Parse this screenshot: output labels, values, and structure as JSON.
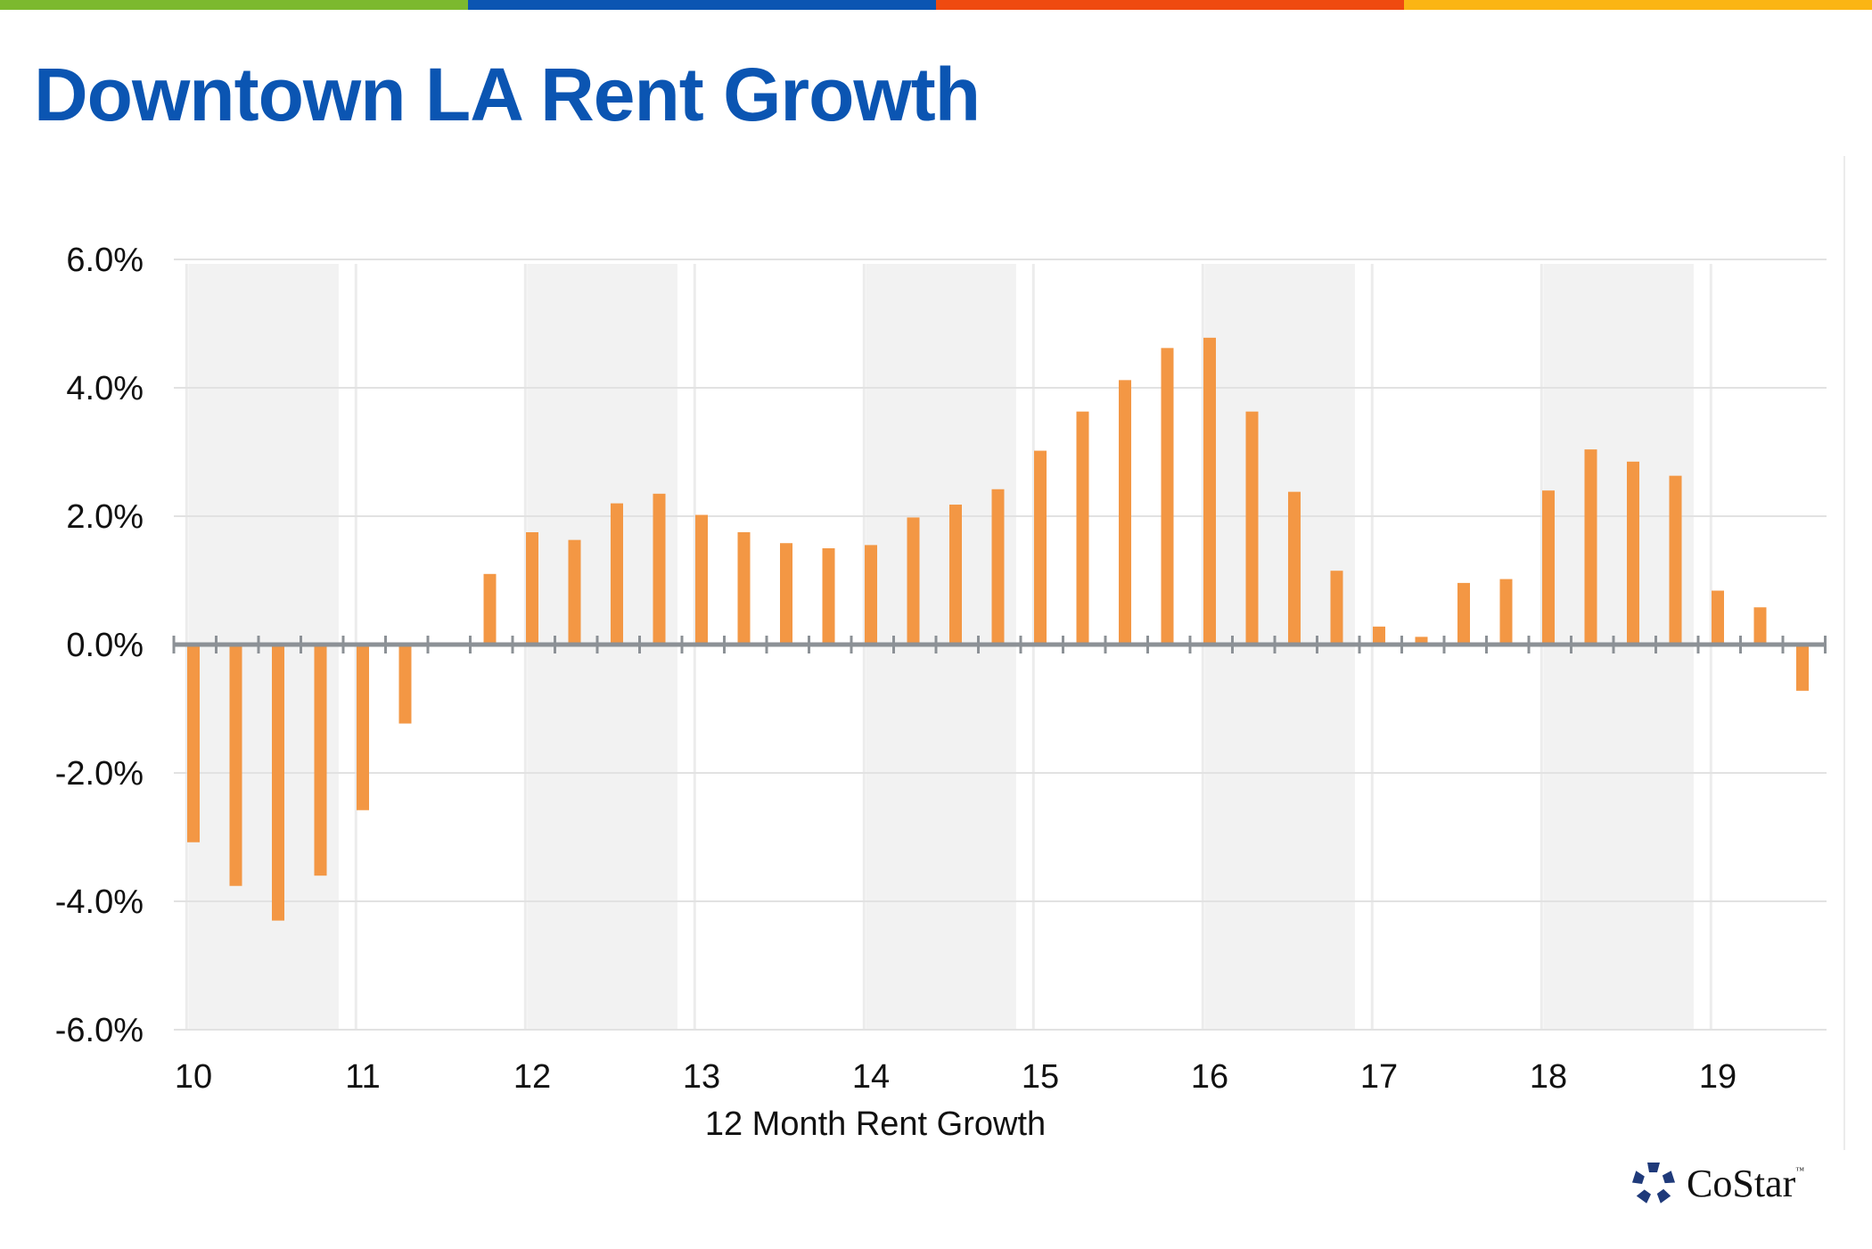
{
  "title": "Downtown LA Rent Growth",
  "stripe_colors": [
    "#7cb92e",
    "#0b55b2",
    "#ef4a10",
    "#fbb514"
  ],
  "logo": {
    "text": "CoStar",
    "tm": "™",
    "color": "#1f3a7a"
  },
  "chart_data": {
    "type": "bar",
    "title": "",
    "xlabel": "12 Month Rent Growth",
    "ylabel": "",
    "ylim": [
      -6,
      6
    ],
    "yticks": [
      "6.0%",
      "4.0%",
      "2.0%",
      "0.0%",
      "-2.0%",
      "-4.0%",
      "-6.0%"
    ],
    "ytick_values": [
      6,
      4,
      2,
      0,
      -2,
      -4,
      -6
    ],
    "xtick_labels": [
      "10",
      "11",
      "12",
      "13",
      "14",
      "15",
      "16",
      "17",
      "18",
      "19"
    ],
    "periods_per_label": 4,
    "grid": true,
    "alternating_year_shading": true,
    "bar_color": "#f39744",
    "band_color": "#f2f2f2",
    "values": [
      -3.08,
      -3.76,
      -4.3,
      -3.6,
      -2.58,
      -1.23,
      0.0,
      1.1,
      1.75,
      1.63,
      2.2,
      2.35,
      2.02,
      1.75,
      1.58,
      1.5,
      1.55,
      1.98,
      2.18,
      2.42,
      3.02,
      3.63,
      4.12,
      4.62,
      4.78,
      3.63,
      2.38,
      1.15,
      0.28,
      0.12,
      0.96,
      1.02,
      2.4,
      3.04,
      2.85,
      2.63,
      0.84,
      0.58,
      -0.72,
      null
    ]
  }
}
